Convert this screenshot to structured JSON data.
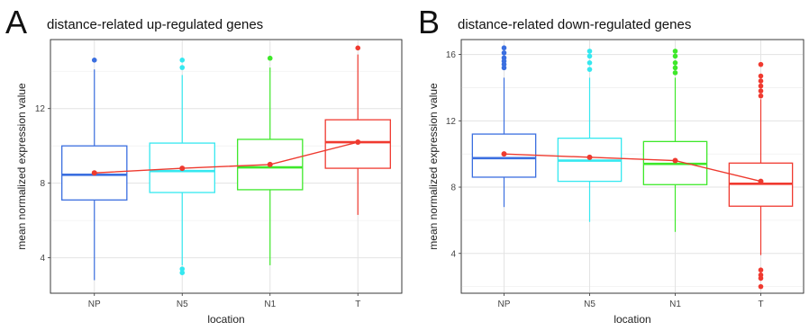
{
  "chart_data": [
    {
      "type": "box",
      "panel_label": "A",
      "title": "distance-related up-regulated genes",
      "xlabel": "location",
      "ylabel": "mean normalized expression value",
      "categories": [
        "NP",
        "N5",
        "N1",
        "T"
      ],
      "yticks": [
        4,
        8,
        12
      ],
      "ylim": [
        2.1,
        15.7
      ],
      "grid": true,
      "boxes": [
        {
          "category": "NP",
          "color": "#3b6fe0",
          "min": 2.8,
          "q1": 7.1,
          "median": 8.45,
          "q3": 10.0,
          "max": 14.1,
          "mean": 8.55,
          "outliers": [
            14.6
          ]
        },
        {
          "category": "N5",
          "color": "#36e8f0",
          "min": 3.6,
          "q1": 7.5,
          "median": 8.65,
          "q3": 10.15,
          "max": 13.8,
          "mean": 8.8,
          "outliers": [
            14.6,
            14.2,
            3.4,
            3.2
          ]
        },
        {
          "category": "N1",
          "color": "#3ee82a",
          "min": 3.6,
          "q1": 7.65,
          "median": 8.85,
          "q3": 10.35,
          "max": 14.2,
          "mean": 9.0,
          "outliers": [
            14.7
          ]
        },
        {
          "category": "T",
          "color": "#f03a30",
          "min": 6.3,
          "q1": 8.8,
          "median": 10.2,
          "q3": 11.4,
          "max": 14.9,
          "mean": 10.2,
          "outliers": [
            15.25
          ]
        }
      ],
      "mean_line_color": "#ee3a2f"
    },
    {
      "type": "box",
      "panel_label": "B",
      "title": "distance-related down-regulated genes",
      "xlabel": "location",
      "ylabel": "mean normalized expression value",
      "categories": [
        "NP",
        "N5",
        "N1",
        "T"
      ],
      "yticks": [
        4,
        8,
        12,
        16
      ],
      "ylim": [
        1.6,
        16.9
      ],
      "grid": true,
      "boxes": [
        {
          "category": "NP",
          "color": "#3b6fe0",
          "min": 6.8,
          "q1": 8.6,
          "median": 9.75,
          "q3": 11.2,
          "max": 14.6,
          "mean": 10.0,
          "outliers": [
            16.4,
            16.1,
            15.8,
            15.6,
            15.4,
            15.2
          ]
        },
        {
          "category": "N5",
          "color": "#36e8f0",
          "min": 5.9,
          "q1": 8.35,
          "median": 9.6,
          "q3": 10.95,
          "max": 14.6,
          "mean": 9.8,
          "outliers": [
            16.2,
            15.9,
            15.5,
            15.1
          ]
        },
        {
          "category": "N1",
          "color": "#3ee82a",
          "min": 5.3,
          "q1": 8.15,
          "median": 9.4,
          "q3": 10.75,
          "max": 14.6,
          "mean": 9.6,
          "outliers": [
            16.2,
            15.9,
            15.5,
            15.2,
            14.9
          ]
        },
        {
          "category": "T",
          "color": "#f03a30",
          "min": 3.9,
          "q1": 6.85,
          "median": 8.2,
          "q3": 9.45,
          "max": 13.3,
          "mean": 8.35,
          "outliers": [
            15.4,
            14.7,
            14.4,
            14.1,
            13.8,
            13.5,
            3.0,
            2.7,
            2.5,
            2.0
          ]
        }
      ],
      "mean_line_color": "#ee3a2f"
    }
  ]
}
